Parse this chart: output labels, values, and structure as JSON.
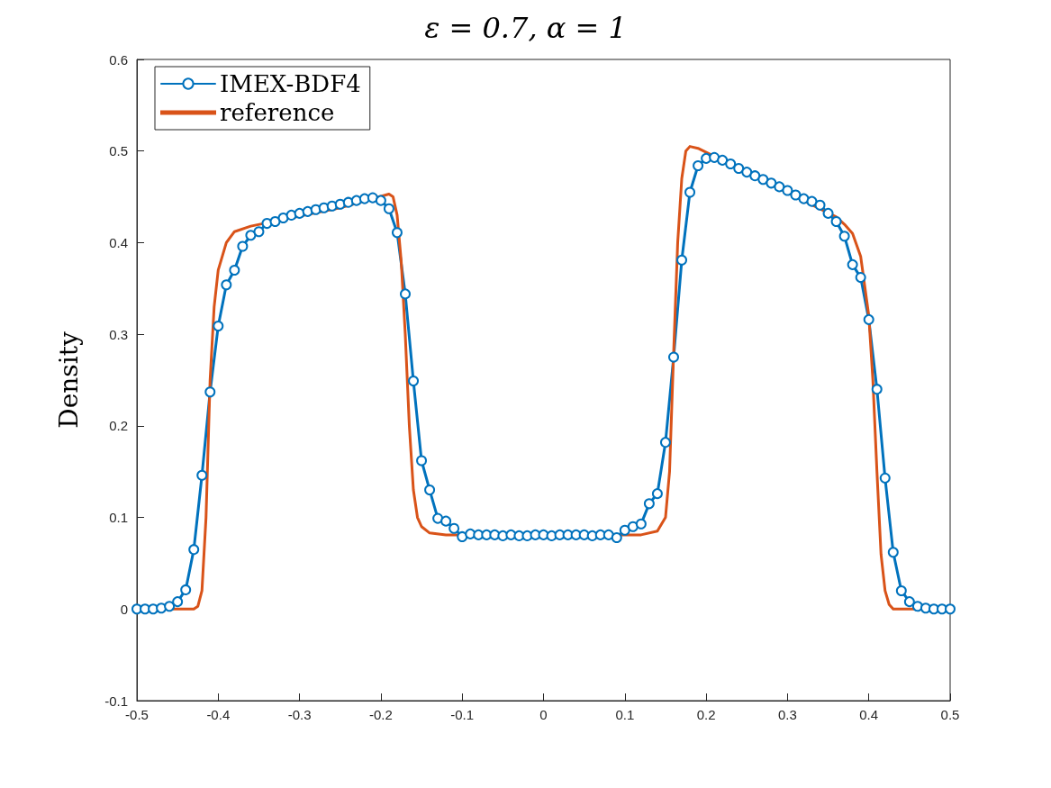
{
  "chart_data": {
    "type": "line",
    "title": "ε = 0.7, α = 1",
    "ylabel": "Density",
    "xlim": [
      -0.5,
      0.5
    ],
    "xticks": [
      -0.5,
      -0.4,
      -0.3,
      -0.2,
      -0.1,
      0,
      0.1,
      0.2,
      0.3,
      0.4,
      0.5
    ],
    "ylim": [
      -0.1,
      0.6
    ],
    "yticks": [
      -0.1,
      0,
      0.1,
      0.2,
      0.3,
      0.4,
      0.5,
      0.6
    ],
    "grid": false,
    "legend": "top left",
    "line_style": "solid",
    "series": [
      {
        "name": "IMEX-BDF4",
        "color": "#0072bd",
        "marker": "circle",
        "x": [
          -0.5,
          -0.49,
          -0.48,
          -0.47,
          -0.46,
          -0.45,
          -0.44,
          -0.43,
          -0.42,
          -0.41,
          -0.4,
          -0.39,
          -0.38,
          -0.37,
          -0.36,
          -0.35,
          -0.34,
          -0.33,
          -0.32,
          -0.31,
          -0.3,
          -0.29,
          -0.28,
          -0.27,
          -0.26,
          -0.25,
          -0.24,
          -0.23,
          -0.22,
          -0.21,
          -0.2,
          -0.19,
          -0.18,
          -0.17,
          -0.16,
          -0.15,
          -0.14,
          -0.13,
          -0.12,
          -0.11,
          -0.1,
          -0.09,
          -0.08,
          -0.07,
          -0.06,
          -0.05,
          -0.04,
          -0.03,
          -0.02,
          -0.01,
          0,
          0.01,
          0.02,
          0.03,
          0.04,
          0.05,
          0.06,
          0.07,
          0.08,
          0.09,
          0.1,
          0.11,
          0.12,
          0.13,
          0.14,
          0.15,
          0.16,
          0.17,
          0.18,
          0.19,
          0.2,
          0.21,
          0.22,
          0.23,
          0.24,
          0.25,
          0.26,
          0.27,
          0.28,
          0.29,
          0.3,
          0.31,
          0.32,
          0.33,
          0.34,
          0.35,
          0.36,
          0.37,
          0.38,
          0.39,
          0.4,
          0.41,
          0.42,
          0.43,
          0.44,
          0.45,
          0.46,
          0.47,
          0.48,
          0.49,
          0.5
        ],
        "values": [
          0,
          0,
          0,
          0.001,
          0.003,
          0.008,
          0.021,
          0.065,
          0.146,
          0.237,
          0.309,
          0.354,
          0.37,
          0.396,
          0.408,
          0.412,
          0.421,
          0.423,
          0.427,
          0.43,
          0.432,
          0.434,
          0.436,
          0.438,
          0.44,
          0.442,
          0.444,
          0.446,
          0.448,
          0.449,
          0.446,
          0.437,
          0.411,
          0.344,
          0.249,
          0.162,
          0.13,
          0.099,
          0.096,
          0.088,
          0.079,
          0.082,
          0.081,
          0.081,
          0.081,
          0.08,
          0.081,
          0.08,
          0.08,
          0.081,
          0.081,
          0.08,
          0.081,
          0.081,
          0.081,
          0.081,
          0.08,
          0.081,
          0.081,
          0.078,
          0.086,
          0.09,
          0.093,
          0.115,
          0.126,
          0.182,
          0.275,
          0.381,
          0.455,
          0.484,
          0.492,
          0.493,
          0.49,
          0.486,
          0.481,
          0.477,
          0.473,
          0.469,
          0.465,
          0.461,
          0.457,
          0.452,
          0.448,
          0.445,
          0.441,
          0.432,
          0.423,
          0.407,
          0.376,
          0.362,
          0.316,
          0.24,
          0.143,
          0.062,
          0.02,
          0.008,
          0.003,
          0.001,
          0,
          0,
          0
        ]
      },
      {
        "name": "reference",
        "color": "#d95319",
        "marker": "none",
        "x": [
          -0.5,
          -0.43,
          -0.425,
          -0.42,
          -0.415,
          -0.41,
          -0.405,
          -0.4,
          -0.39,
          -0.38,
          -0.36,
          -0.25,
          -0.19,
          -0.185,
          -0.18,
          -0.175,
          -0.17,
          -0.165,
          -0.16,
          -0.155,
          -0.15,
          -0.14,
          -0.12,
          0.12,
          0.14,
          0.15,
          0.155,
          0.16,
          0.165,
          0.17,
          0.175,
          0.18,
          0.19,
          0.36,
          0.37,
          0.38,
          0.39,
          0.4,
          0.405,
          0.41,
          0.415,
          0.42,
          0.425,
          0.43,
          0.5
        ],
        "values": [
          0,
          0,
          0.003,
          0.02,
          0.1,
          0.25,
          0.33,
          0.37,
          0.4,
          0.412,
          0.418,
          0.438,
          0.453,
          0.45,
          0.43,
          0.38,
          0.3,
          0.2,
          0.13,
          0.1,
          0.09,
          0.083,
          0.081,
          0.081,
          0.085,
          0.1,
          0.15,
          0.28,
          0.4,
          0.47,
          0.5,
          0.505,
          0.503,
          0.428,
          0.42,
          0.41,
          0.385,
          0.32,
          0.25,
          0.15,
          0.06,
          0.02,
          0.005,
          0,
          0
        ]
      }
    ]
  }
}
